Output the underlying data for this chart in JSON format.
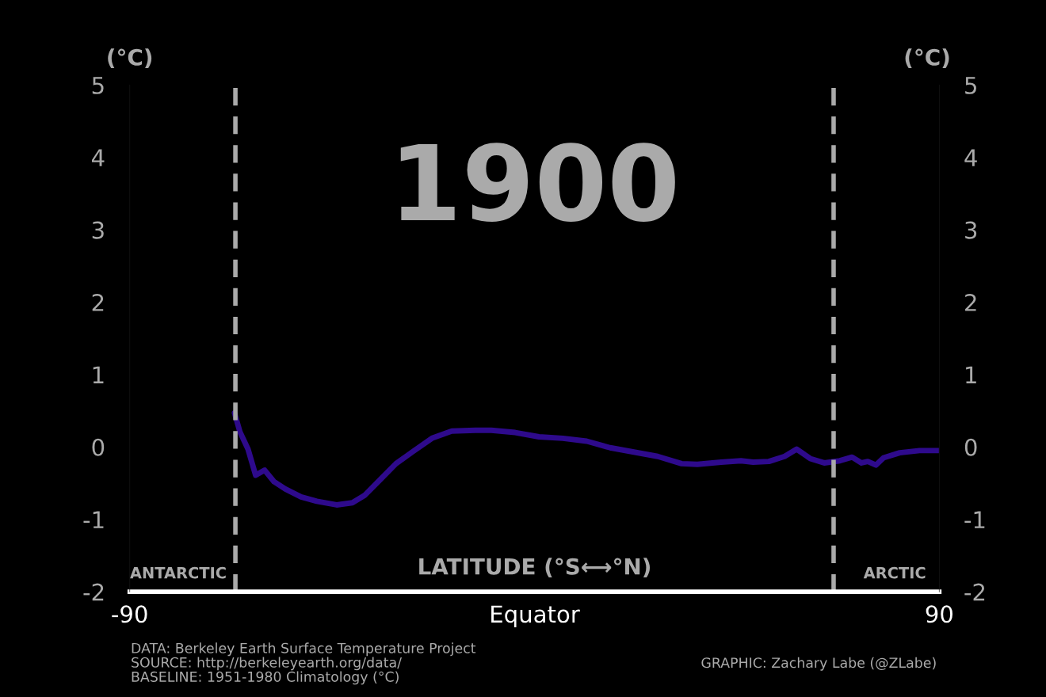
{
  "chart_data": {
    "type": "line",
    "xlabel": "LATITUDE (°S⟷°N)",
    "ylabel": "(°C)",
    "y2label": "(°C)",
    "x": [
      -66.7,
      -65.5,
      -63.7,
      -62,
      -60,
      -57.9,
      -55.4,
      -51.9,
      -48.4,
      -44,
      -40.5,
      -37.8,
      -34.3,
      -30.8,
      -27.2,
      -22.8,
      -18.4,
      -13.1,
      -9.6,
      -4.3,
      1.0,
      6.3,
      11.6,
      16.8,
      22.1,
      27.4,
      32.7,
      36.2,
      41.5,
      45.9,
      48.6,
      52.1,
      55.6,
      58.3,
      61.3,
      64.4,
      67.9,
      70.6,
      72.7,
      74.1,
      75.9,
      77.6,
      81.2,
      85.6,
      90
    ],
    "series": [
      {
        "color": "#2e0a8c",
        "values": [
          0.47,
          0.21,
          -0.03,
          -0.39,
          -0.32,
          -0.48,
          -0.58,
          -0.69,
          -0.75,
          -0.8,
          -0.77,
          -0.67,
          -0.45,
          -0.23,
          -0.07,
          0.12,
          0.22,
          0.23,
          0.23,
          0.2,
          0.14,
          0.12,
          0.08,
          -0.01,
          -0.07,
          -0.13,
          -0.23,
          -0.24,
          -0.21,
          -0.19,
          -0.21,
          -0.2,
          -0.13,
          -0.03,
          -0.16,
          -0.22,
          -0.19,
          -0.14,
          -0.22,
          -0.2,
          -0.25,
          -0.15,
          -0.08,
          -0.05,
          -0.05
        ]
      }
    ],
    "xlim": [
      -90,
      90
    ],
    "xticks": [
      -90,
      {
        "value": 0,
        "label": "Equator"
      },
      90
    ],
    "ylim": [
      -2,
      5
    ],
    "yticks": [
      -2,
      -1,
      0,
      1,
      2,
      3,
      4,
      5
    ],
    "y2lim": [
      -2,
      5
    ],
    "y2ticks": [
      -2,
      -1,
      0,
      1,
      2,
      3,
      4,
      5
    ],
    "ref_lines": [
      {
        "axis": "x",
        "value": -66.5,
        "color": "#aaaaaa",
        "line_style": "dashed"
      },
      {
        "axis": "x",
        "value": 66.5,
        "color": "#aaaaaa",
        "line_style": "dashed"
      }
    ],
    "annotations": [
      "1900",
      "ANTARCTIC",
      "ARCTIC",
      "DATA: Berkeley Earth Surface Temperature Project",
      "SOURCE: http://berkeleyearth.org/data/",
      "BASELINE: 1951-1980 Climatology (°C)",
      "GRAPHIC: Zachary Labe (@ZLabe)"
    ],
    "grid": false,
    "legend": false,
    "marker": "none",
    "line_style": "solid"
  }
}
